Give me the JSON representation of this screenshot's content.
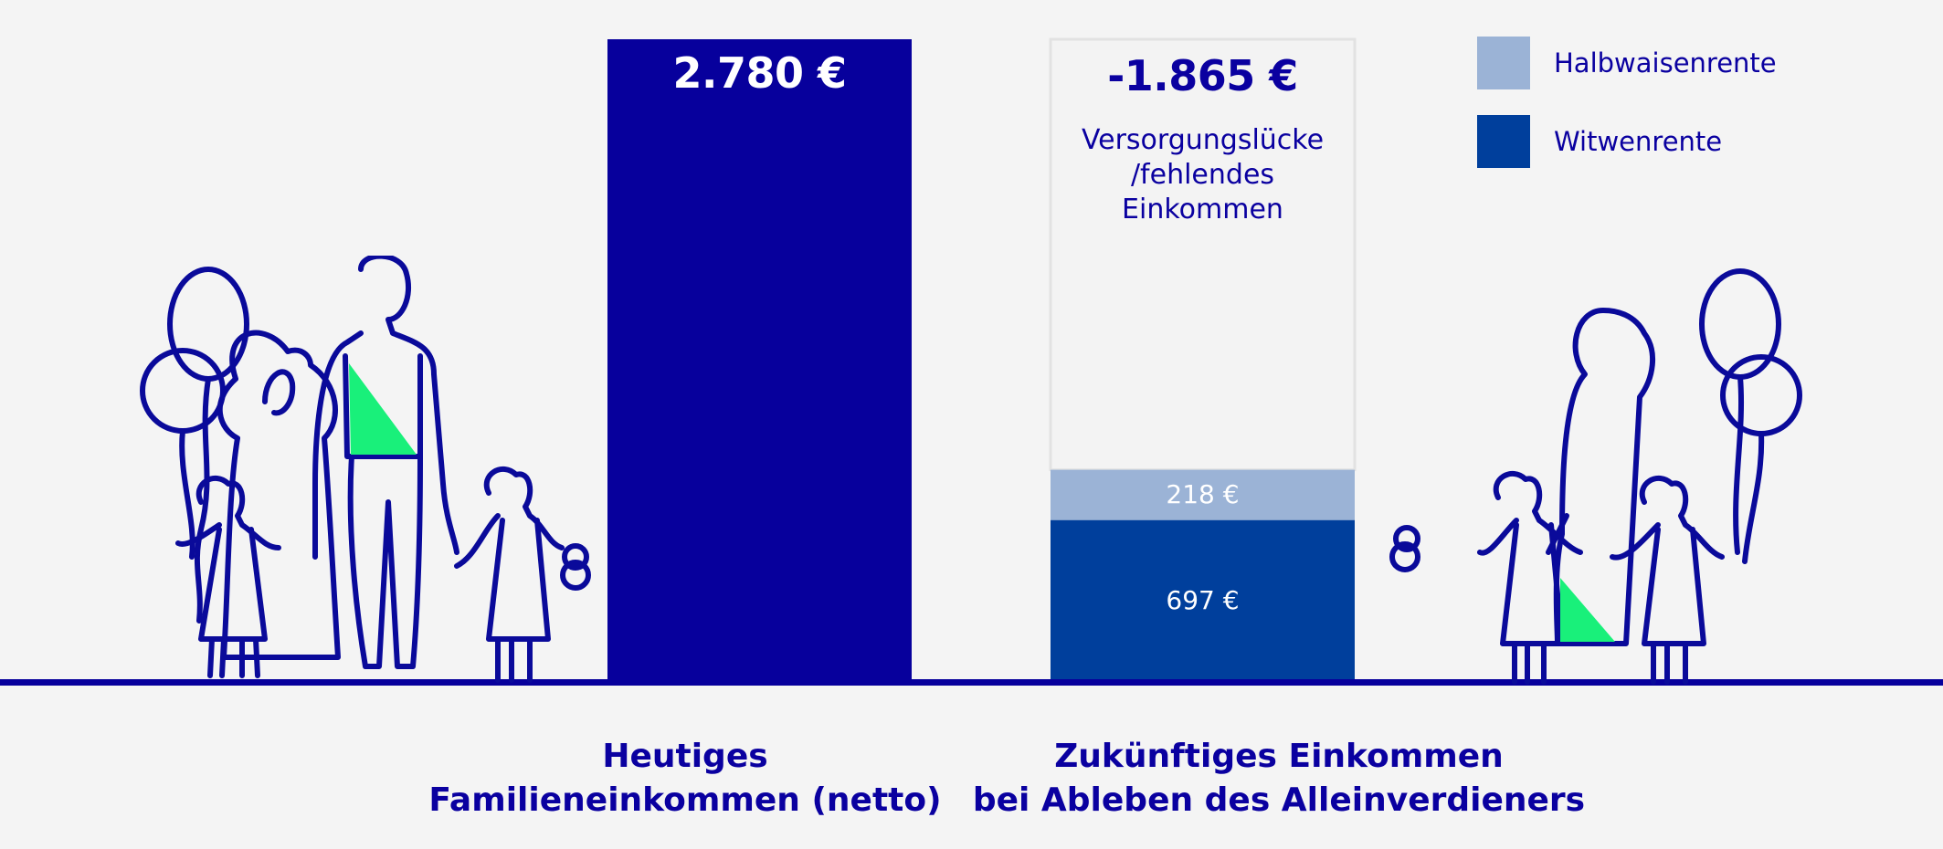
{
  "chart_data": {
    "type": "bar",
    "categories": [
      "Heutiges\nFamilieneinkommen (netto)",
      "Zukünftiges Einkommen\nbei Ableben des Alleinverdieners"
    ],
    "series": [
      {
        "name": "Witwenrente",
        "values": [
          null,
          697
        ],
        "labels": [
          null,
          "697 €"
        ]
      },
      {
        "name": "Halbwaisenrente",
        "values": [
          null,
          218
        ],
        "labels": [
          null,
          "218 €"
        ]
      }
    ],
    "totals": [
      {
        "value": 2780,
        "label": "2.780 €"
      },
      {
        "value": -1865,
        "label": "-1.865 €"
      }
    ],
    "gap_annotation": "Versorgungslücke\n/fehlendes\nEinkommen",
    "ylim": [
      0,
      2780
    ],
    "grid": false,
    "legend_position": "top-right",
    "colors": {
      "current_income": "#07009c",
      "witwenrente": "#003f9c",
      "halbwaisenrente": "#9bb3d6",
      "gap": "#f3f3f3",
      "gap_border": "#e2e2e2",
      "text": "#0a00a0",
      "accent": "#19f07a",
      "baseline": "#07009c"
    }
  },
  "legend": [
    {
      "label": "Halbwaisenrente",
      "color": "#9bb3d6"
    },
    {
      "label": "Witwenrente",
      "color": "#003f9c"
    }
  ]
}
